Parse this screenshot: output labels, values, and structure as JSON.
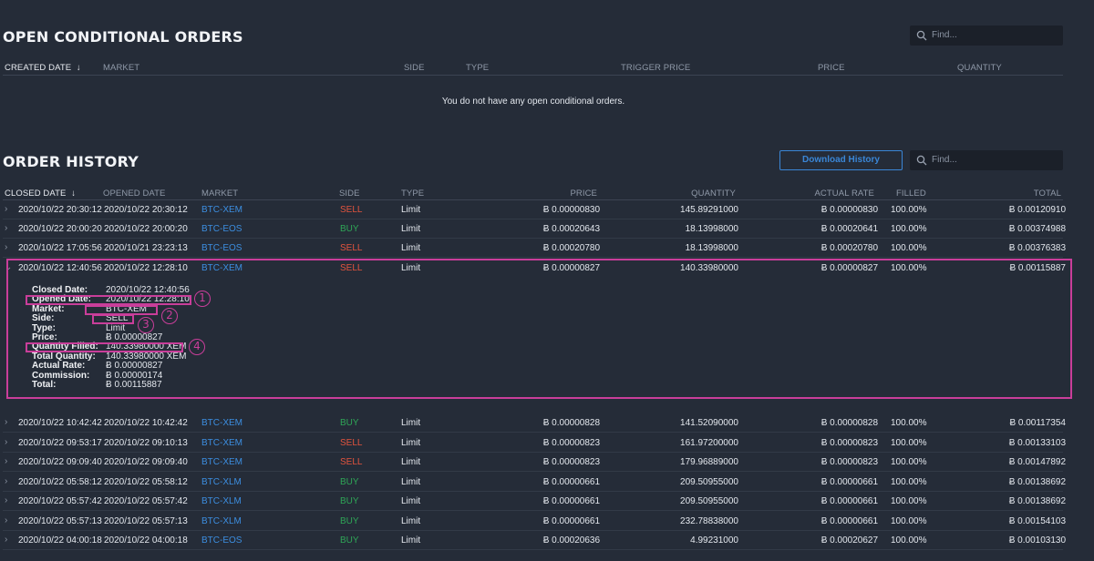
{
  "open_orders": {
    "title": "OPEN CONDITIONAL ORDERS",
    "find_placeholder": "Find...",
    "columns": {
      "created_date": "CREATED DATE",
      "market": "MARKET",
      "side": "SIDE",
      "type": "TYPE",
      "trigger_price": "TRIGGER PRICE",
      "price": "PRICE",
      "quantity": "QUANTITY"
    },
    "empty_message": "You do not have any open conditional orders."
  },
  "order_history": {
    "title": "ORDER HISTORY",
    "download_label": "Download History",
    "find_placeholder": "Find...",
    "columns": {
      "closed_date": "CLOSED DATE",
      "opened_date": "OPENED DATE",
      "market": "MARKET",
      "side": "SIDE",
      "type": "TYPE",
      "price": "PRICE",
      "quantity": "QUANTITY",
      "actual_rate": "ACTUAL RATE",
      "filled": "FILLED",
      "total": "TOTAL"
    },
    "rows_top": [
      {
        "closed": "2020/10/22 20:30:12",
        "opened": "2020/10/22 20:30:12",
        "market": "BTC-XEM",
        "side": "SELL",
        "type": "Limit",
        "price": "Ƀ 0.00000830",
        "quantity": "145.89291000",
        "rate": "Ƀ 0.00000830",
        "filled": "100.00%",
        "total": "Ƀ 0.00120910"
      },
      {
        "closed": "2020/10/22 20:00:20",
        "opened": "2020/10/22 20:00:20",
        "market": "BTC-EOS",
        "side": "BUY",
        "type": "Limit",
        "price": "Ƀ 0.00020643",
        "quantity": "18.13998000",
        "rate": "Ƀ 0.00020641",
        "filled": "100.00%",
        "total": "Ƀ 0.00374988"
      },
      {
        "closed": "2020/10/22 17:05:56",
        "opened": "2020/10/21 23:23:13",
        "market": "BTC-EOS",
        "side": "SELL",
        "type": "Limit",
        "price": "Ƀ 0.00020780",
        "quantity": "18.13998000",
        "rate": "Ƀ 0.00020780",
        "filled": "100.00%",
        "total": "Ƀ 0.00376383"
      },
      {
        "closed": "2020/10/22 12:40:56",
        "opened": "2020/10/22 12:28:10",
        "market": "BTC-XEM",
        "side": "SELL",
        "type": "Limit",
        "price": "Ƀ 0.00000827",
        "quantity": "140.33980000",
        "rate": "Ƀ 0.00000827",
        "filled": "100.00%",
        "total": "Ƀ 0.00115887"
      }
    ],
    "detail": {
      "items": [
        {
          "label": "Closed Date:",
          "value": "2020/10/22 12:40:56"
        },
        {
          "label": "Opened Date:",
          "value": "2020/10/22 12:28:10"
        },
        {
          "label": "Market:",
          "value": "BTC-XEM"
        },
        {
          "label": "Side:",
          "value": "SELL"
        },
        {
          "label": "Type:",
          "value": "Limit"
        },
        {
          "label": "Price:",
          "value": "Ƀ 0.00000827"
        },
        {
          "label": "Quantity Filled:",
          "value": "140.33980000 XEM"
        },
        {
          "label": "Total Quantity:",
          "value": "140.33980000 XEM"
        },
        {
          "label": "Actual Rate:",
          "value": "Ƀ 0.00000827"
        },
        {
          "label": "Commission:",
          "value": "Ƀ 0.00000174"
        },
        {
          "label": "Total:",
          "value": "Ƀ 0.00115887"
        }
      ],
      "badges": [
        "1",
        "2",
        "3",
        "4"
      ]
    },
    "rows_bottom": [
      {
        "closed": "2020/10/22 10:42:42",
        "opened": "2020/10/22 10:42:42",
        "market": "BTC-XEM",
        "side": "BUY",
        "type": "Limit",
        "price": "Ƀ 0.00000828",
        "quantity": "141.52090000",
        "rate": "Ƀ 0.00000828",
        "filled": "100.00%",
        "total": "Ƀ 0.00117354"
      },
      {
        "closed": "2020/10/22 09:53:17",
        "opened": "2020/10/22 09:10:13",
        "market": "BTC-XEM",
        "side": "SELL",
        "type": "Limit",
        "price": "Ƀ 0.00000823",
        "quantity": "161.97200000",
        "rate": "Ƀ 0.00000823",
        "filled": "100.00%",
        "total": "Ƀ 0.00133103"
      },
      {
        "closed": "2020/10/22 09:09:40",
        "opened": "2020/10/22 09:09:40",
        "market": "BTC-XEM",
        "side": "SELL",
        "type": "Limit",
        "price": "Ƀ 0.00000823",
        "quantity": "179.96889000",
        "rate": "Ƀ 0.00000823",
        "filled": "100.00%",
        "total": "Ƀ 0.00147892"
      },
      {
        "closed": "2020/10/22 05:58:12",
        "opened": "2020/10/22 05:58:12",
        "market": "BTC-XLM",
        "side": "BUY",
        "type": "Limit",
        "price": "Ƀ 0.00000661",
        "quantity": "209.50955000",
        "rate": "Ƀ 0.00000661",
        "filled": "100.00%",
        "total": "Ƀ 0.00138692"
      },
      {
        "closed": "2020/10/22 05:57:42",
        "opened": "2020/10/22 05:57:42",
        "market": "BTC-XLM",
        "side": "BUY",
        "type": "Limit",
        "price": "Ƀ 0.00000661",
        "quantity": "209.50955000",
        "rate": "Ƀ 0.00000661",
        "filled": "100.00%",
        "total": "Ƀ 0.00138692"
      },
      {
        "closed": "2020/10/22 05:57:13",
        "opened": "2020/10/22 05:57:13",
        "market": "BTC-XLM",
        "side": "BUY",
        "type": "Limit",
        "price": "Ƀ 0.00000661",
        "quantity": "232.78838000",
        "rate": "Ƀ 0.00000661",
        "filled": "100.00%",
        "total": "Ƀ 0.00154103"
      },
      {
        "closed": "2020/10/22 04:00:18",
        "opened": "2020/10/22 04:00:18",
        "market": "BTC-EOS",
        "side": "BUY",
        "type": "Limit",
        "price": "Ƀ 0.00020636",
        "quantity": "4.99231000",
        "rate": "Ƀ 0.00020627",
        "filled": "100.00%",
        "total": "Ƀ 0.00103130"
      }
    ]
  }
}
